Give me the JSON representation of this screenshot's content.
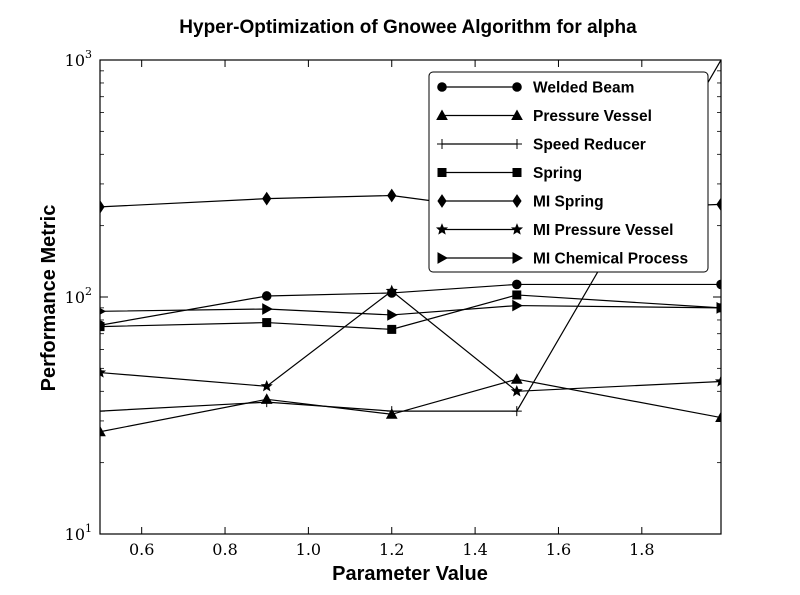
{
  "chart_data": {
    "type": "line",
    "title": "Hyper-Optimization of Gnowee Algorithm for alpha",
    "xlabel": "Parameter Value",
    "ylabel": "Performance Metric",
    "xlim": [
      0.5,
      1.99
    ],
    "ylim": [
      10,
      1000
    ],
    "yscale": "log",
    "x_ticks": [
      0.6,
      0.8,
      1.0,
      1.2,
      1.4,
      1.6,
      1.8
    ],
    "x_tick_labels": [
      "0.6",
      "0.8",
      "1.0",
      "1.2",
      "1.4",
      "1.6",
      "1.8"
    ],
    "y_ticks": [
      10,
      100,
      1000
    ],
    "y_tick_bases": [
      "10",
      "10",
      "10"
    ],
    "y_tick_exponents": [
      "1",
      "2",
      "3"
    ],
    "legend_position": "upper-right",
    "x": [
      0.5,
      0.9,
      1.2,
      1.5,
      1.99
    ],
    "series": [
      {
        "name": "Welded Beam",
        "marker": "circle",
        "values": [
          76,
          101,
          104,
          113,
          113
        ]
      },
      {
        "name": "Pressure Vessel",
        "marker": "triangle",
        "values": [
          27,
          37,
          32,
          45,
          31
        ]
      },
      {
        "name": "Speed Reducer",
        "marker": "plus",
        "values": [
          33,
          36,
          33,
          33,
          1000
        ]
      },
      {
        "name": "Spring",
        "marker": "square",
        "values": [
          75,
          78,
          73,
          102,
          90
        ]
      },
      {
        "name": "MI Spring",
        "marker": "diamond",
        "values": [
          240,
          260,
          268,
          228,
          246
        ]
      },
      {
        "name": "MI Pressure Vessel",
        "marker": "star",
        "values": [
          48,
          42,
          106,
          40,
          44
        ]
      },
      {
        "name": "MI Chemical Process",
        "marker": "triangle-right",
        "values": [
          87,
          89,
          84,
          92,
          90
        ]
      }
    ]
  }
}
